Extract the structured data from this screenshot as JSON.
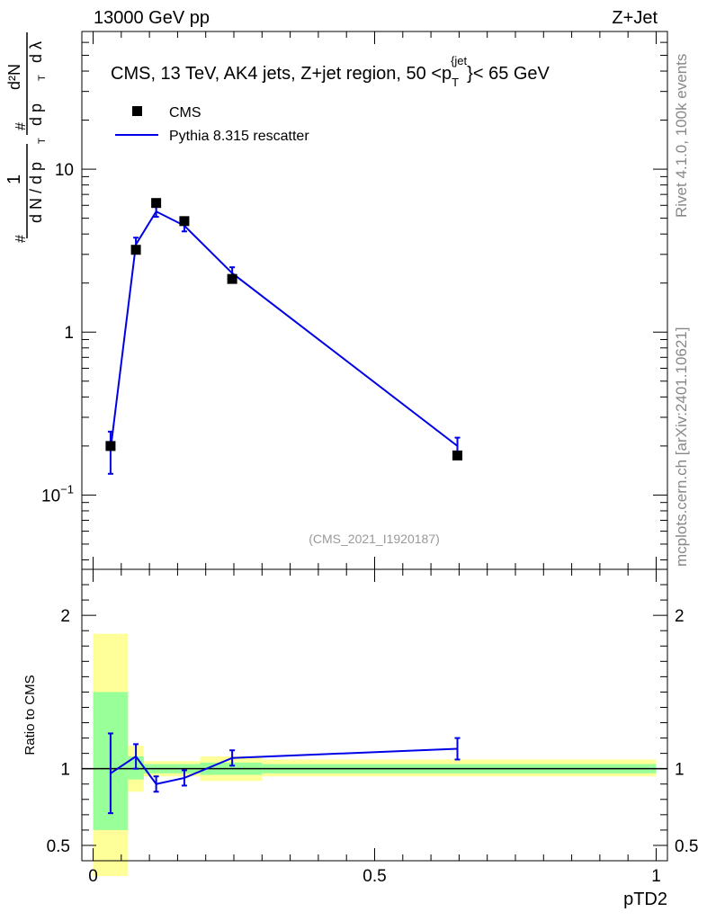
{
  "header": {
    "left": "13000 GeV pp",
    "right": "Z+Jet"
  },
  "side": {
    "rivet": "Rivet 4.1.0,  100k events",
    "mcplots": "mcplots.cern.ch [arXiv:2401.10621]"
  },
  "chart_data": [
    {
      "type": "scatter",
      "title": "CMS, 13 TeV, AK4 jets, Z+jet region, 50 <p_T^{jet}< 65 GeV",
      "title_parts": {
        "main": "CMS, 13 TeV, AK4 jets, Z+jet region, 50 <p",
        "sub": "T",
        "sup": "{jet",
        "tail": "}< 65 GeV"
      },
      "ylabel": "1/(dN/dp_T) d²N/(dp_T dλ)",
      "ylabel_parts": {
        "one": "1",
        "dN": "d N / d p",
        "T": "T",
        "num": "d²N",
        "den": "d p",
        "dl": "d λ",
        "hash": "#"
      },
      "yscale": "log",
      "ylim": [
        0.035,
        70
      ],
      "xlim": [
        -0.02,
        1.02
      ],
      "ytick_labels": [
        "10",
        "1",
        "10^-1"
      ],
      "ytick_parts": [
        {
          "base": "10",
          "exp": ""
        },
        {
          "base": "1",
          "exp": ""
        },
        {
          "base": "10",
          "exp": "−1"
        }
      ],
      "ytick_values": [
        10,
        1,
        0.1
      ],
      "watermark": "(CMS_2021_I1920187)",
      "legend": [
        {
          "label": "CMS",
          "marker": "square",
          "color": "#000000"
        },
        {
          "label": "Pythia 8.315 rescatter",
          "marker": "line",
          "color": "#0000e6"
        }
      ],
      "series": [
        {
          "name": "CMS",
          "x": [
            0.031,
            0.076,
            0.112,
            0.162,
            0.247,
            0.647
          ],
          "y": [
            0.2,
            3.2,
            6.2,
            4.8,
            2.12,
            0.175
          ]
        },
        {
          "name": "Pythia 8.315 rescatter",
          "x": [
            0.031,
            0.076,
            0.112,
            0.162,
            0.247,
            0.647
          ],
          "y": [
            0.19,
            3.45,
            5.5,
            4.5,
            2.3,
            0.2
          ],
          "err": [
            0.055,
            0.35,
            0.4,
            0.35,
            0.2,
            0.025
          ]
        }
      ]
    },
    {
      "type": "line",
      "ylabel": "Ratio to CMS",
      "xlabel": "pTD2",
      "xlim": [
        -0.02,
        1.02
      ],
      "ylim": [
        0.4,
        2.3
      ],
      "ytick_labels": [
        "0.5",
        "1",
        "2"
      ],
      "ytick_values": [
        0.5,
        1,
        2
      ],
      "xtick_labels": [
        "0",
        "0.5",
        "1"
      ],
      "xtick_values": [
        0,
        0.5,
        1
      ],
      "bands": [
        {
          "x0": 0.0,
          "x1": 0.062,
          "yellow": [
            0.3,
            1.88
          ],
          "green": [
            0.6,
            1.5
          ]
        },
        {
          "x0": 0.062,
          "x1": 0.09,
          "yellow": [
            0.85,
            1.15
          ],
          "green": [
            0.93,
            1.08
          ]
        },
        {
          "x0": 0.09,
          "x1": 0.19,
          "yellow": [
            0.95,
            1.05
          ],
          "green": [
            0.97,
            1.03
          ]
        },
        {
          "x0": 0.19,
          "x1": 0.3,
          "yellow": [
            0.92,
            1.08
          ],
          "green": [
            0.96,
            1.04
          ]
        },
        {
          "x0": 0.3,
          "x1": 1.0,
          "yellow": [
            0.95,
            1.06
          ],
          "green": [
            0.97,
            1.03
          ]
        }
      ],
      "series": [
        {
          "name": "Pythia 8.315 rescatter",
          "x": [
            0.031,
            0.076,
            0.112,
            0.162,
            0.247,
            0.647
          ],
          "y": [
            0.97,
            1.08,
            0.9,
            0.94,
            1.07,
            1.13
          ],
          "err": [
            0.26,
            0.08,
            0.05,
            0.05,
            0.05,
            0.07
          ]
        }
      ]
    }
  ]
}
